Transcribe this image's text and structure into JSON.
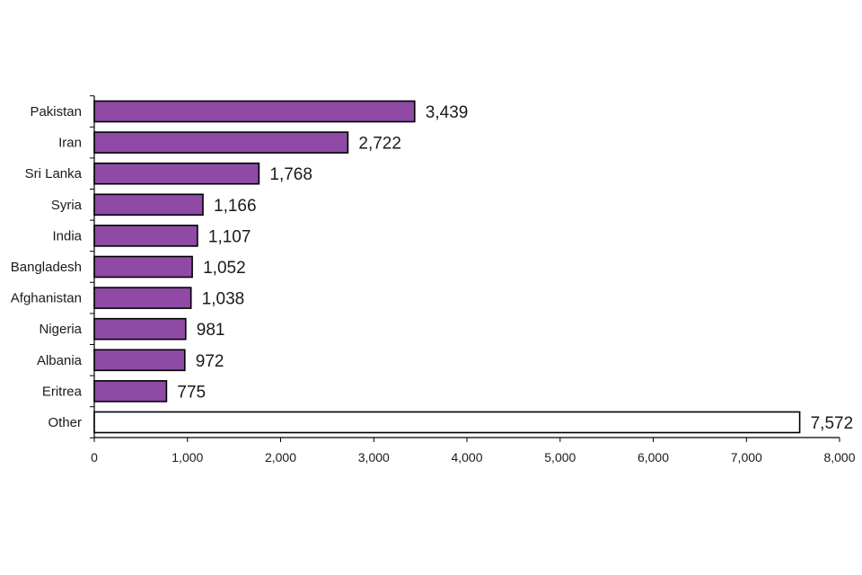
{
  "chart_data": {
    "type": "bar",
    "orientation": "horizontal",
    "title": "",
    "xlabel": "",
    "ylabel": "",
    "categories": [
      "Pakistan",
      "Iran",
      "Sri Lanka",
      "Syria",
      "India",
      "Bangladesh",
      "Afghanistan",
      "Nigeria",
      "Albania",
      "Eritrea",
      "Other"
    ],
    "values": [
      3439,
      2722,
      1768,
      1166,
      1107,
      1052,
      1038,
      981,
      972,
      775,
      7572
    ],
    "value_labels": [
      "3,439",
      "2,722",
      "1,768",
      "1,166",
      "1,107",
      "1,052",
      "1,038",
      "981",
      "972",
      "775",
      "7,572"
    ],
    "bar_colors": [
      "#8e4aa5",
      "#8e4aa5",
      "#8e4aa5",
      "#8e4aa5",
      "#8e4aa5",
      "#8e4aa5",
      "#8e4aa5",
      "#8e4aa5",
      "#8e4aa5",
      "#8e4aa5",
      "#ffffff"
    ],
    "xlim": [
      0,
      8000
    ],
    "xticks": [
      0,
      1000,
      2000,
      3000,
      4000,
      5000,
      6000,
      7000,
      8000
    ],
    "xtick_labels": [
      "0",
      "1,000",
      "2,000",
      "3,000",
      "4,000",
      "5,000",
      "6,000",
      "7,000",
      "8,000"
    ],
    "grid": false,
    "legend": "none"
  }
}
